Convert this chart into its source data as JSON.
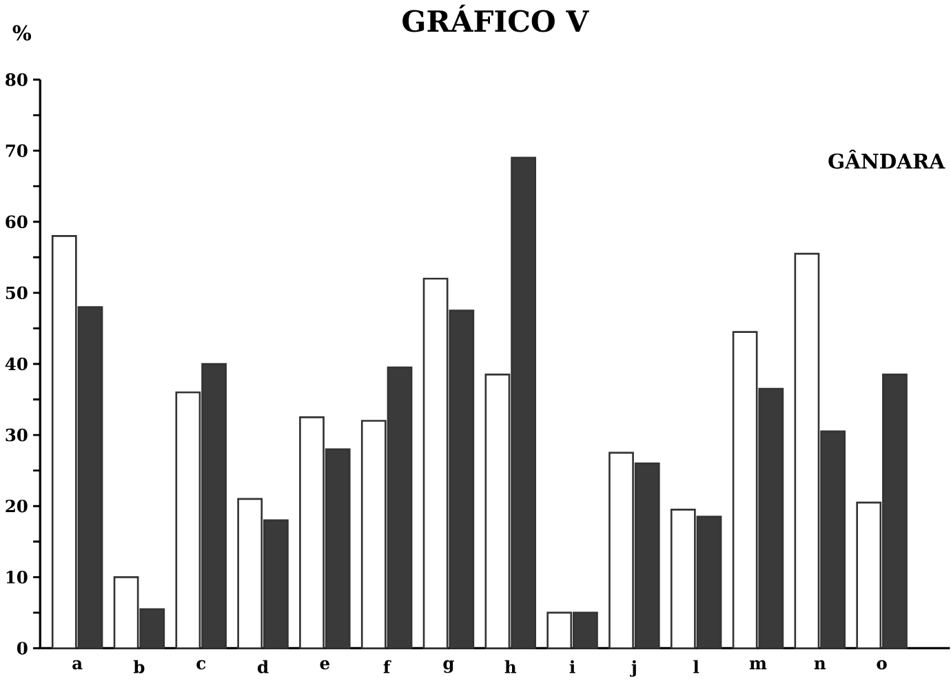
{
  "chart_data": {
    "type": "bar",
    "title": "GRÁFICO V",
    "ylabel": "%",
    "annotations": [
      "GÂNDARA"
    ],
    "categories": [
      "a",
      "b",
      "c",
      "d",
      "e",
      "f",
      "g",
      "h",
      "i",
      "j",
      "l",
      "m",
      "n",
      "o"
    ],
    "series": [
      {
        "color": "#ffffff",
        "values": [
          58,
          10,
          36,
          21,
          32.5,
          32,
          52,
          38.5,
          5,
          27.5,
          19.5,
          44.5,
          55.5,
          20.5
        ]
      },
      {
        "color": "#3a3a3a",
        "values": [
          48,
          5.5,
          40,
          18,
          28,
          39.5,
          47.5,
          69,
          5,
          26,
          18.5,
          36.5,
          30.5,
          38.5
        ]
      }
    ],
    "ylim": [
      0,
      80
    ],
    "yticks": [
      0,
      10,
      20,
      30,
      40,
      50,
      60,
      70,
      80
    ]
  }
}
